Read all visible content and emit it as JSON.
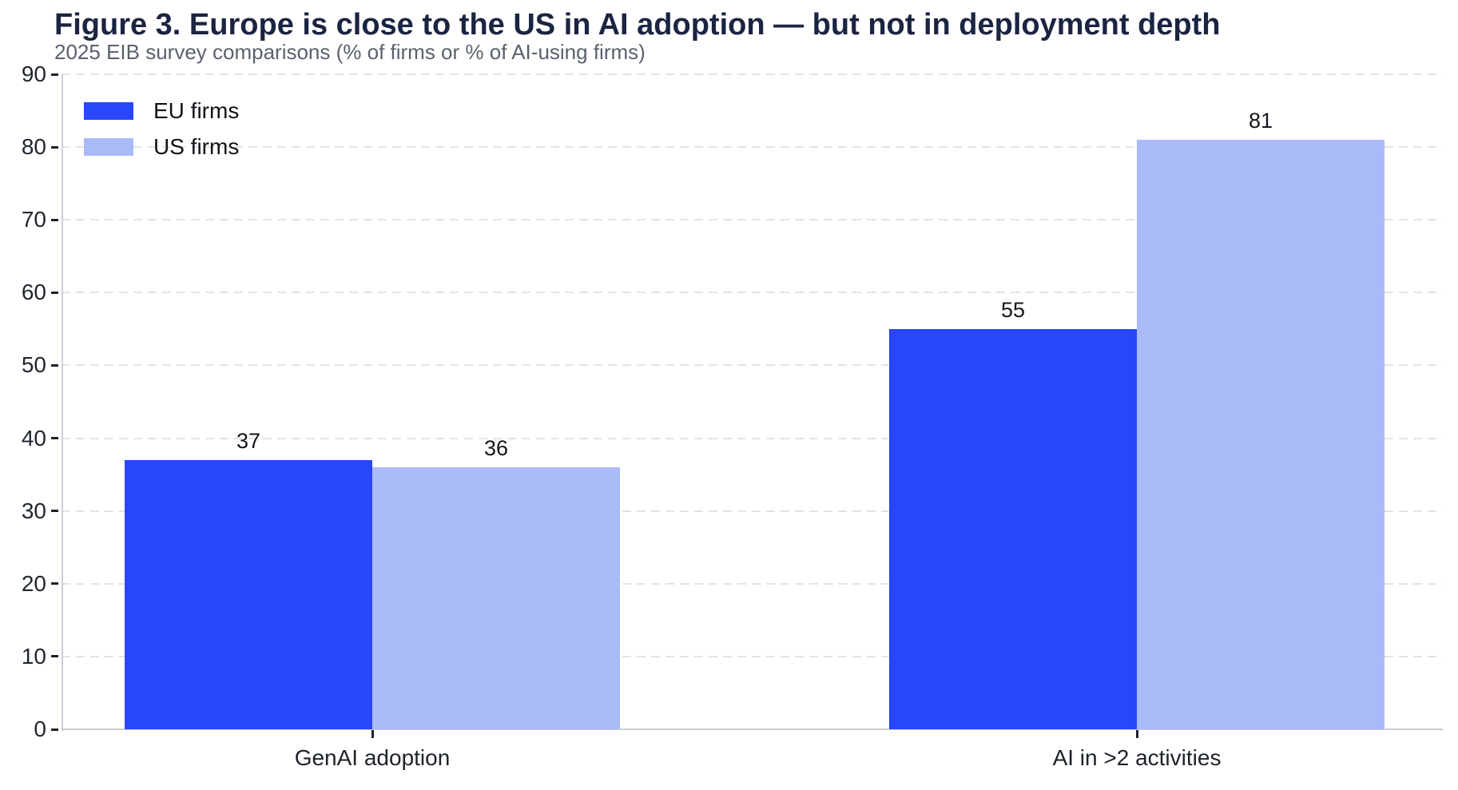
{
  "chart_data": {
    "type": "bar",
    "title": "Figure 3. Europe is close to the US in AI adoption — but not in deployment depth",
    "subtitle": "2025 EIB survey comparisons (% of firms or % of AI-using firms)",
    "categories": [
      "GenAI adoption",
      "AI in >2 activities"
    ],
    "series": [
      {
        "name": "EU firms",
        "color": "#2847fb",
        "values": [
          37,
          55
        ]
      },
      {
        "name": "US firms",
        "color": "#a9baf9",
        "values": [
          36,
          81
        ]
      }
    ],
    "value_labels": [
      [
        37,
        36
      ],
      [
        55,
        81
      ]
    ],
    "xlabel": "",
    "ylabel": "",
    "ylim": [
      0,
      90
    ],
    "yticks": [
      0,
      10,
      20,
      30,
      40,
      50,
      60,
      70,
      80,
      90
    ],
    "grid": "horizontal-dashed",
    "legend_position": "top-left",
    "show_value_labels": true
  },
  "colors": {
    "title": "#1b2441",
    "subtitle": "#5a616e",
    "axis_spine": "#c9cdd6",
    "gridline": "#e4e4e4",
    "tick": "#1c2128",
    "value_label": "#14171c"
  }
}
